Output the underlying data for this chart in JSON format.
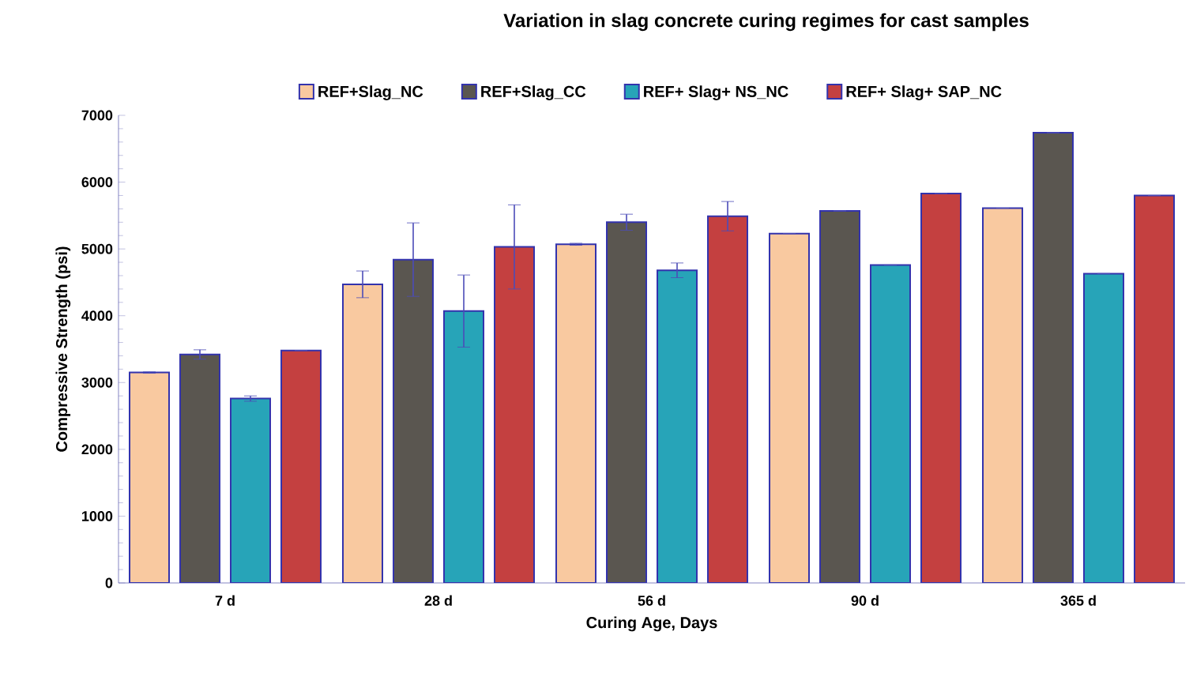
{
  "chart_data": {
    "type": "bar",
    "title": "Variation in slag concrete curing regimes for cast samples",
    "xlabel": "Curing Age, Days",
    "ylabel": "Compressive Strength (psi)",
    "categories": [
      "7 d",
      "28 d",
      "56 d",
      "90 d",
      "365 d"
    ],
    "series": [
      {
        "name": "REF+Slag_NC",
        "color": "#f9c9a0",
        "values": [
          3150,
          4470,
          5070,
          5230,
          5610
        ],
        "errors": [
          10,
          200,
          15,
          null,
          null
        ]
      },
      {
        "name": "REF+Slag_CC",
        "color": "#5a5650",
        "values": [
          3420,
          4840,
          5400,
          5570,
          6740
        ],
        "errors": [
          70,
          550,
          120,
          null,
          null
        ]
      },
      {
        "name": "REF+ Slag+ NS_NC",
        "color": "#27a4b8",
        "values": [
          2760,
          4070,
          4680,
          4760,
          4630
        ],
        "errors": [
          40,
          540,
          110,
          null,
          null
        ]
      },
      {
        "name": "REF+ Slag+ SAP_NC",
        "color": "#c44040",
        "values": [
          3480,
          5030,
          5490,
          5830,
          5800
        ],
        "errors": [
          null,
          630,
          220,
          null,
          null
        ]
      }
    ],
    "ylim": [
      0,
      7000
    ],
    "yticks": [
      0,
      1000,
      2000,
      3000,
      4000,
      5000,
      6000,
      7000
    ],
    "grid": false,
    "legend": "top"
  }
}
